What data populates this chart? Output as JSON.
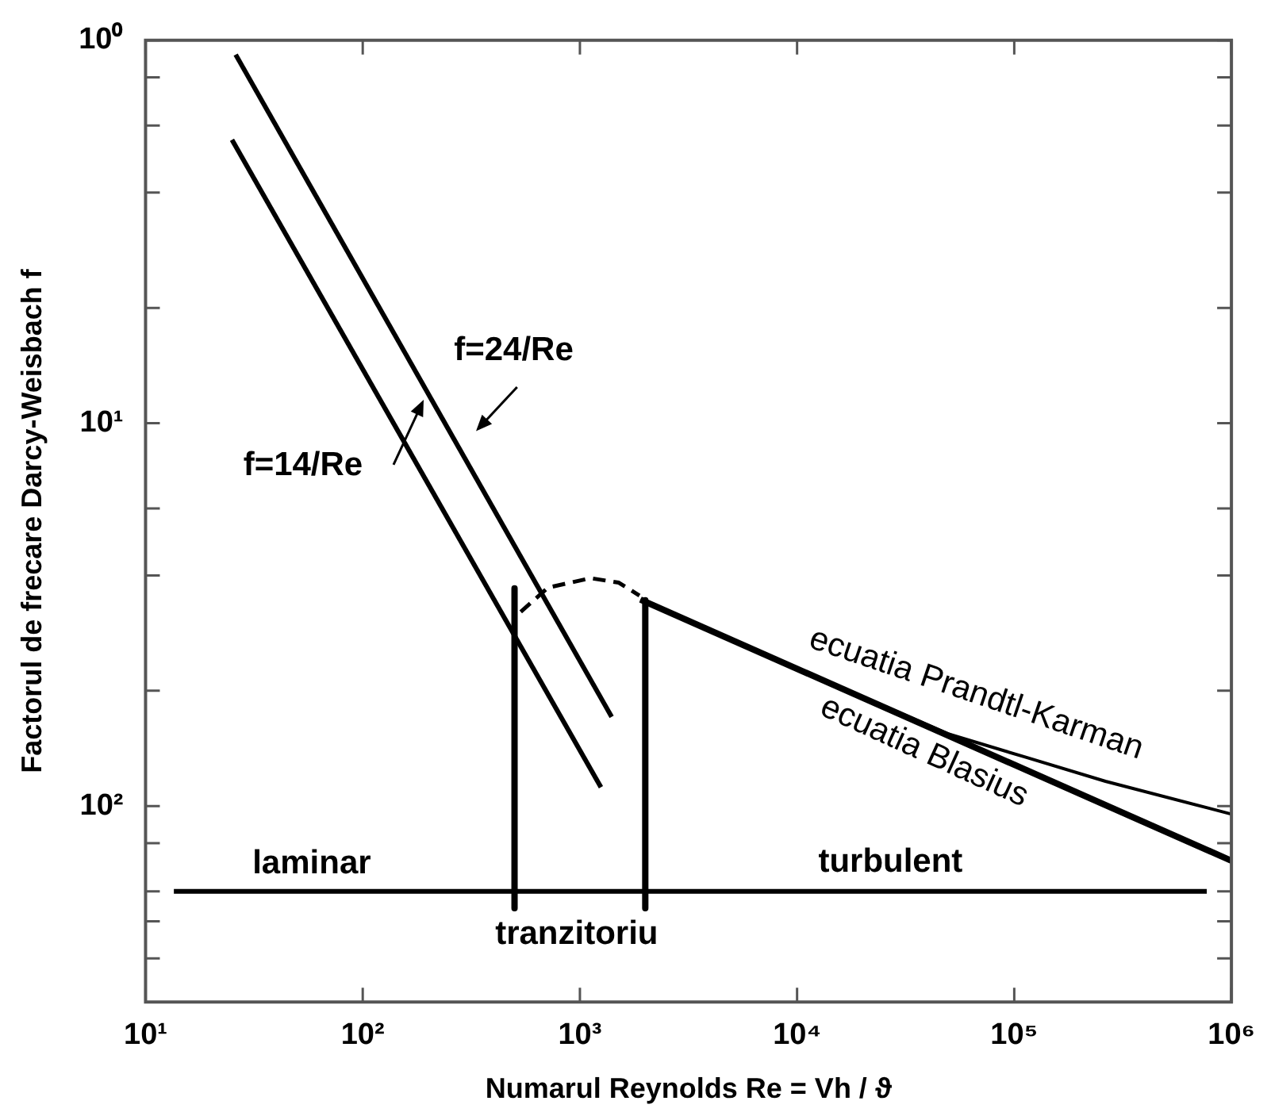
{
  "chart_data": {
    "type": "line",
    "xlabel": "Numarul Reynolds Re = Vh / ϑ",
    "ylabel": "Factorul de frecare Darcy-Weisbach f",
    "log": "xy",
    "grid": false,
    "legend": false,
    "marker": "none",
    "xlim": [
      10,
      1000000
    ],
    "ylim": [
      325,
      1
    ],
    "xticks": [
      {
        "value": 10,
        "label": "10¹"
      },
      {
        "value": 100,
        "label": "10²"
      },
      {
        "value": 1000,
        "label": "10³"
      },
      {
        "value": 10000,
        "label": "10⁴"
      },
      {
        "value": 100000,
        "label": "10⁵"
      },
      {
        "value": 1000000,
        "label": "10⁶"
      }
    ],
    "yticks": [
      {
        "value": 1,
        "label": "10⁰"
      },
      {
        "value": 1.25,
        "label": null
      },
      {
        "value": 1.67,
        "label": null
      },
      {
        "value": 2.5,
        "label": null
      },
      {
        "value": 5,
        "label": null
      },
      {
        "value": 10,
        "label": "10¹"
      },
      {
        "value": 16.7,
        "label": null
      },
      {
        "value": 25,
        "label": null
      },
      {
        "value": 50,
        "label": null
      },
      {
        "value": 100,
        "label": "10²"
      },
      {
        "value": 125,
        "label": null
      },
      {
        "value": 167,
        "label": null
      },
      {
        "value": 200,
        "label": null
      },
      {
        "value": 250,
        "label": null
      }
    ],
    "series": [
      {
        "color": "#000000",
        "line_style": "solid",
        "x": [
          26,
          1400
        ],
        "values": [
          1.09,
          58.5
        ]
      },
      {
        "color": "#000000",
        "line_style": "solid",
        "x": [
          25,
          1250
        ],
        "values": [
          1.82,
          89.3
        ]
      },
      {
        "color": "#000000",
        "line_style": "dashed",
        "x": [
          534,
          713,
          1120,
          1510,
          1880
        ],
        "values": [
          31.1,
          26.9,
          25.4,
          26.1,
          28.2
        ]
      },
      {
        "color": "#000000",
        "line_style": "solid",
        "x": [
          1900,
          1000000
        ],
        "values": [
          28.9,
          139
        ]
      },
      {
        "color": "#000000",
        "line_style": "solid",
        "x": [
          1900,
          10000,
          50000,
          113000,
          263000,
          1000000
        ],
        "values": [
          28.9,
          43.7,
          64.9,
          74.6,
          86.2,
          105
        ]
      },
      {
        "color": "#000000",
        "line_style": "solid",
        "x": [
          500,
          500
        ],
        "values": [
          27,
          185
        ]
      },
      {
        "color": "#000000",
        "line_style": "solid",
        "x": [
          2000,
          2000
        ],
        "values": [
          29,
          185
        ]
      },
      {
        "color": "#000000",
        "line_style": "solid",
        "x": [
          13.5,
          500,
          2000,
          770000
        ],
        "values": [
          167,
          167,
          167,
          167
        ]
      }
    ],
    "annotations": [
      "f=24/Re",
      "f=14/Re",
      "ecuatia Prandtl-Karman",
      "ecuatia Blasius",
      "laminar",
      "tranzitoriu",
      "turbulent"
    ]
  }
}
